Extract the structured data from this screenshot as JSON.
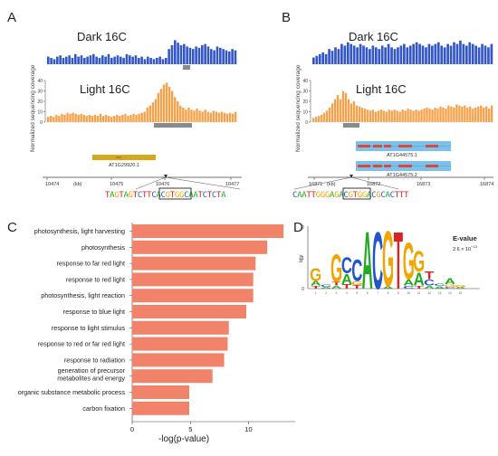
{
  "panels": {
    "A": {
      "letter": "A",
      "dark_label": "Dark 16C",
      "light_label": "Light 16C",
      "ylabel": "Normalized sequencing coverage",
      "yticks": [
        0,
        10,
        20,
        30,
        40
      ],
      "gene_label": "AT1G29920.1",
      "axis_ticks": [
        "10474",
        "10475",
        "10476",
        "10477"
      ],
      "axis_unit": "(kb)",
      "sequence_pre": "TAGTAGTCTT",
      "sequence_box": "CACGTG",
      "sequence_post": "GCAATCTCTA",
      "dark_coverage": [
        6,
        5,
        4,
        6,
        7,
        5,
        6,
        7,
        5,
        8,
        6,
        7,
        5,
        6,
        7,
        8,
        6,
        5,
        7,
        6,
        8,
        5,
        6,
        7,
        6,
        5,
        8,
        7,
        6,
        7,
        5,
        6,
        4,
        6,
        5,
        4,
        5,
        6,
        4,
        5,
        12,
        15,
        19,
        17,
        15,
        16,
        14,
        13,
        12,
        14,
        13,
        15,
        16,
        14,
        12,
        11,
        14,
        13,
        12,
        11,
        10,
        12,
        11
      ],
      "light_coverage": [
        5,
        6,
        5,
        7,
        6,
        8,
        7,
        9,
        8,
        9,
        8,
        7,
        8,
        7,
        6,
        7,
        6,
        7,
        6,
        8,
        6,
        7,
        6,
        5,
        6,
        7,
        6,
        7,
        8,
        6,
        7,
        8,
        7,
        8,
        9,
        10,
        14,
        16,
        19,
        22,
        28,
        32,
        36,
        38,
        34,
        30,
        24,
        20,
        16,
        14,
        12,
        14,
        12,
        11,
        13,
        11,
        10,
        12,
        10,
        9,
        11,
        10,
        9,
        10,
        9,
        8,
        9,
        8,
        10
      ]
    },
    "B": {
      "letter": "B",
      "dark_label": "Dark 16C",
      "light_label": "Light 16C",
      "ylabel": "Normalized sequencing coverage",
      "yticks": [
        0,
        10,
        20,
        30,
        40
      ],
      "gene_label_1": "AT1G44575.2",
      "gene_label_2": "AT1G44575.1",
      "axis_ticks": [
        "16871",
        "16872",
        "16873",
        "16874"
      ],
      "axis_unit": "(kb)",
      "sequence_pre": "CAATTGGGAG",
      "sequence_box": "ACGTG",
      "sequence_post": "GACGCACTTT",
      "dark_coverage": [
        4,
        5,
        6,
        7,
        6,
        9,
        8,
        10,
        9,
        12,
        11,
        13,
        12,
        11,
        10,
        12,
        11,
        10,
        9,
        11,
        10,
        9,
        11,
        10,
        12,
        10,
        9,
        10,
        11,
        12,
        10,
        11,
        12,
        13,
        12,
        11,
        10,
        12,
        11,
        12,
        13,
        11,
        10,
        12,
        11,
        13,
        12,
        14,
        12,
        11,
        13,
        12,
        11,
        10,
        12,
        11,
        10,
        12
      ],
      "light_coverage": [
        4,
        5,
        6,
        7,
        9,
        11,
        14,
        18,
        22,
        26,
        22,
        30,
        28,
        22,
        18,
        20,
        16,
        15,
        14,
        13,
        12,
        11,
        12,
        10,
        11,
        12,
        11,
        10,
        12,
        11,
        12,
        11,
        10,
        12,
        11,
        13,
        12,
        11,
        12,
        11,
        12,
        13,
        14,
        13,
        12,
        14,
        13,
        15,
        14,
        13,
        16,
        15,
        14,
        17,
        16,
        15,
        16,
        14,
        15,
        13,
        14,
        15,
        16,
        14,
        15,
        13,
        16
      ]
    },
    "C": {
      "letter": "C"
    },
    "D": {
      "letter": "D",
      "evalue_label": "E-value",
      "evalue_text": "2.6 × 10",
      "evalue_exp": "−13",
      "ylabel": "bits",
      "ymax_label": "2",
      "y1_label": "1",
      "y0_label": "0",
      "positions": [
        "1",
        "2",
        "3",
        "4",
        "5",
        "6",
        "7",
        "8",
        "9",
        "10",
        "11",
        "12",
        "13",
        "14",
        "15"
      ]
    }
  },
  "chart_data": {
    "type": "bar",
    "orientation": "horizontal",
    "categories": [
      "photosynthesis, light harvesting",
      "photosynthesis",
      "response to far red light",
      "response to red light",
      "photosynthesis, light reaction",
      "response to blue light",
      "response to light stimulus",
      "response to red or far red light",
      "response to radiation",
      "generation of precursor metabolites and energy",
      "organic substance metabolic process",
      "carbon fixation"
    ],
    "values": [
      13.0,
      11.6,
      10.6,
      10.4,
      10.4,
      9.8,
      8.3,
      8.2,
      7.9,
      6.9,
      4.9,
      4.9
    ],
    "xlabel": "-log(p-value)",
    "xticks": [
      0,
      5,
      10
    ],
    "xlim": [
      0,
      14
    ],
    "color": "#f2836b",
    "grid": false
  },
  "colors": {
    "dark": "#3457c8",
    "light": "#f7a24a",
    "gene_gold": "#d9a81a",
    "gene_blue": "#7cc1ec",
    "exon_red": "#d94a3a",
    "peak_gray": "#8a8a8a",
    "bar": "#f2836b",
    "axis": "#444444",
    "nt_A": "#22aa22",
    "nt_C": "#2255cc",
    "nt_G": "#f0a500",
    "nt_T": "#dd2222"
  }
}
